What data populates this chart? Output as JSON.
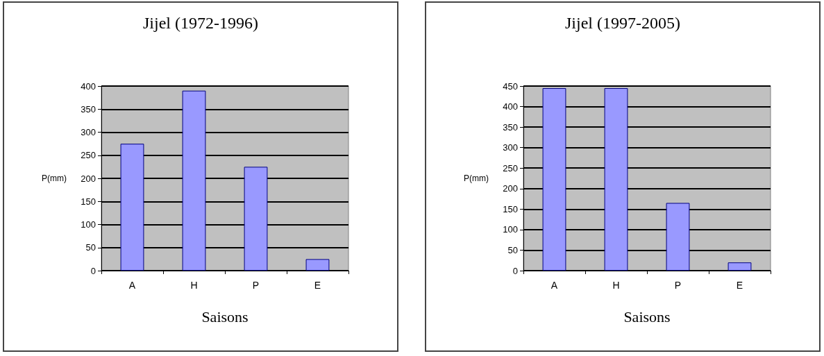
{
  "chart_data": [
    {
      "type": "bar",
      "title": "Jijel (1972-1996)",
      "xlabel": "Saisons",
      "ylabel": "P(mm)",
      "categories": [
        "A",
        "H",
        "P",
        "E"
      ],
      "values": [
        275,
        390,
        225,
        25
      ],
      "color": "#9999ff",
      "ylim": [
        0,
        400
      ],
      "yticks": [
        0,
        50,
        100,
        150,
        200,
        250,
        300,
        350,
        400
      ],
      "grid": "y"
    },
    {
      "type": "bar",
      "title": "Jijel (1997-2005)",
      "xlabel": "Saisons",
      "ylabel": "P(mm)",
      "categories": [
        "A",
        "H",
        "P",
        "E"
      ],
      "values": [
        445,
        445,
        165,
        20
      ],
      "color": "#9999ff",
      "ylim": [
        0,
        450
      ],
      "yticks": [
        0,
        50,
        100,
        150,
        200,
        250,
        300,
        350,
        400,
        450
      ],
      "grid": "y"
    }
  ]
}
